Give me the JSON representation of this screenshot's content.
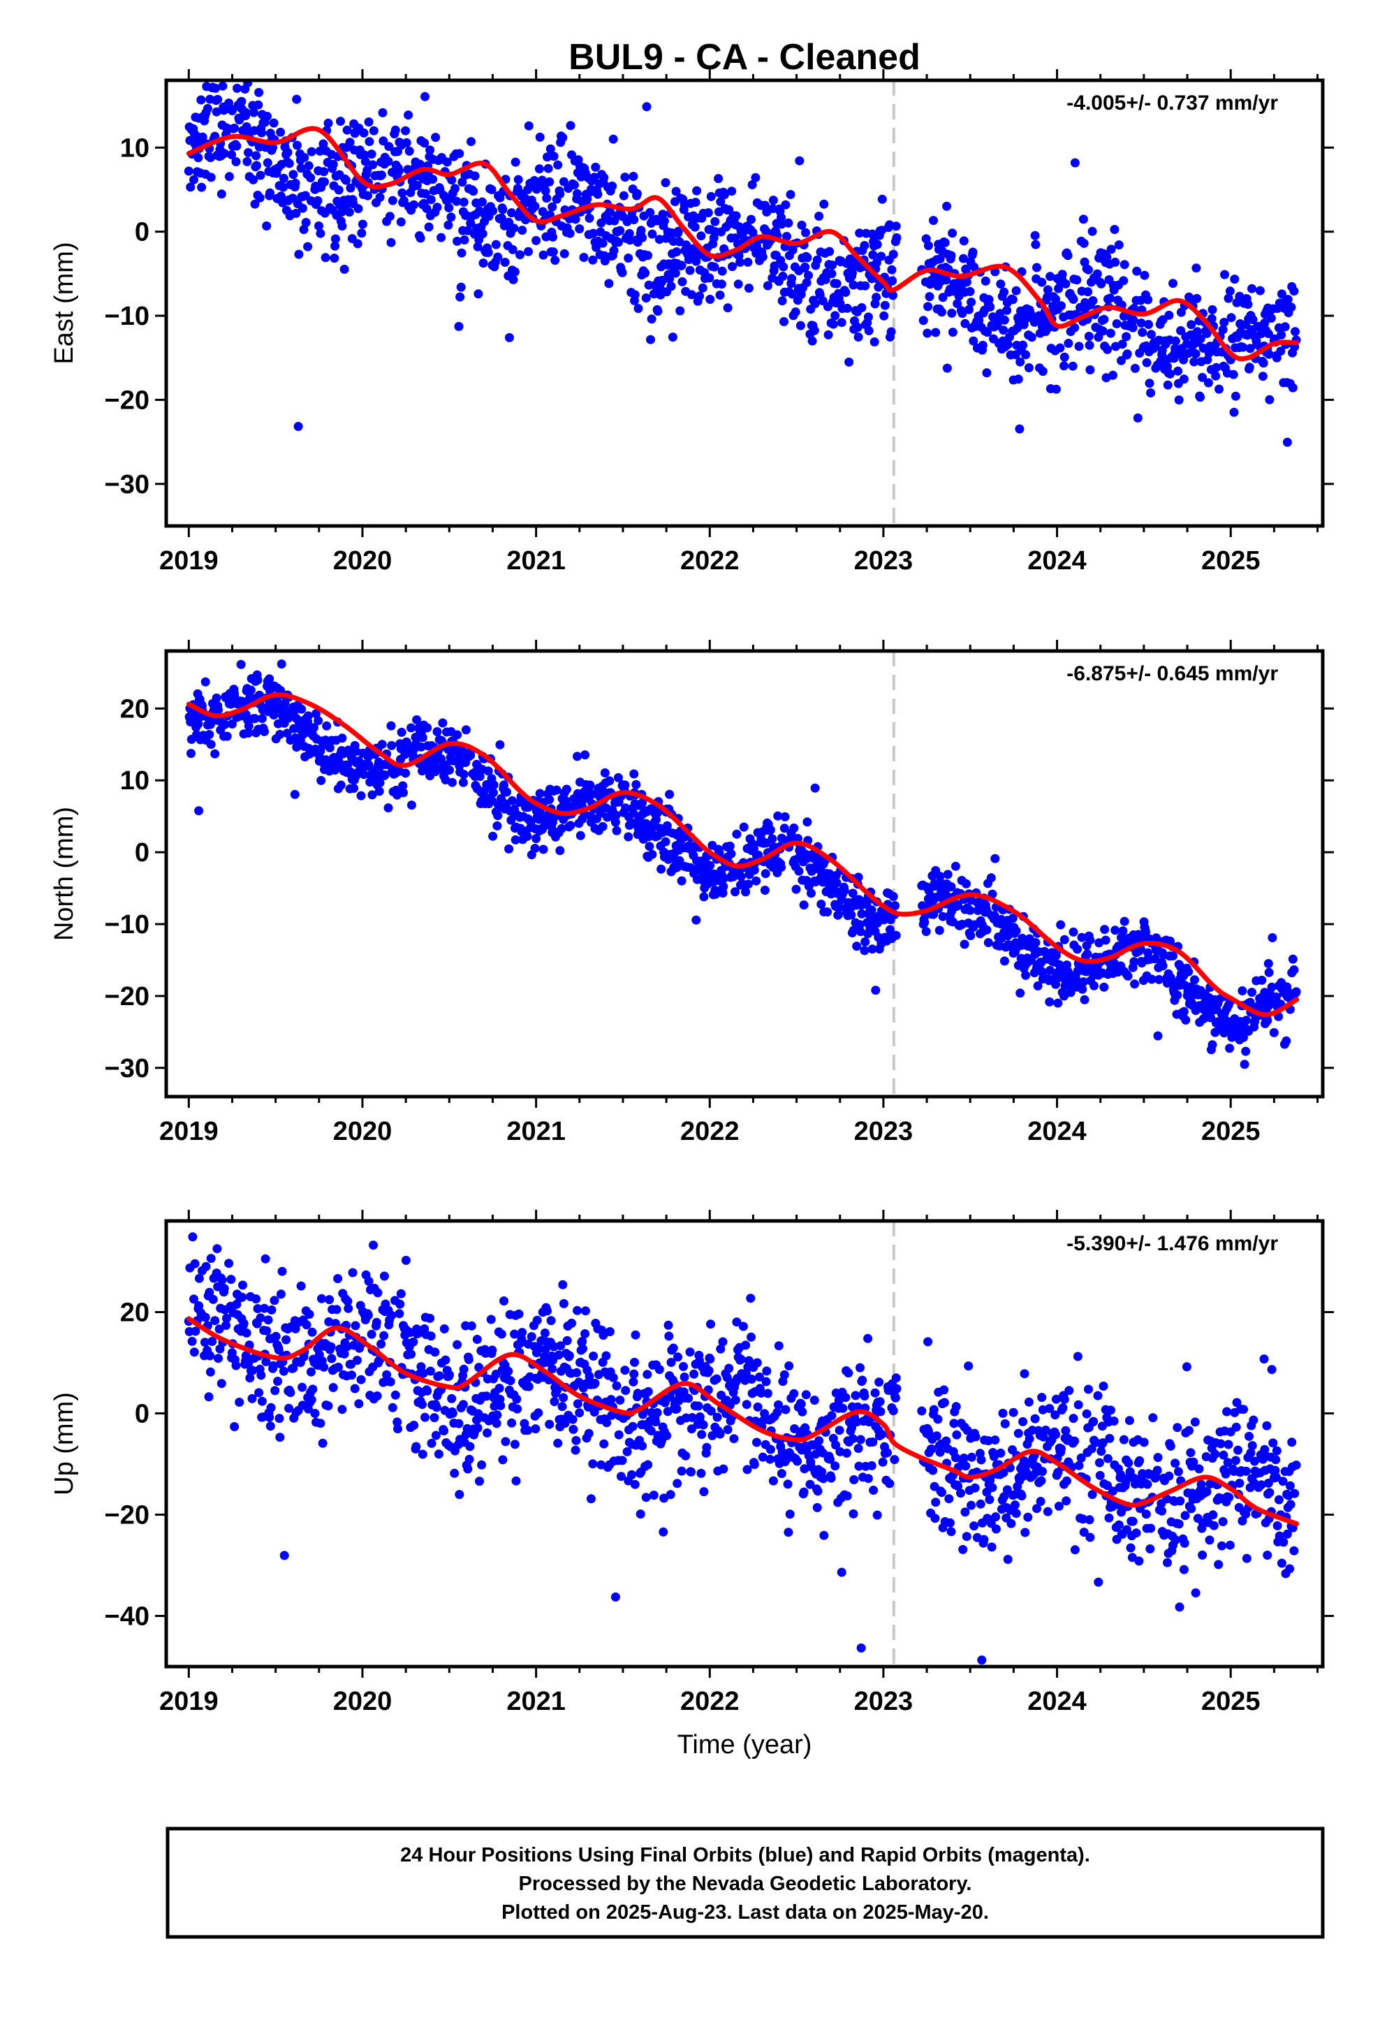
{
  "title": "BUL9  - CA - Cleaned",
  "xlabel": "Time (year)",
  "footer": [
    "24 Hour Positions Using Final Orbits (blue) and Rapid Orbits (magenta).",
    "Processed by the Nevada Geodetic Laboratory.",
    "Plotted on 2025-Aug-23. Last data on 2025-May-20."
  ],
  "colors": {
    "points": "#0000ff",
    "model": "#ff0000",
    "break_line": "#c8c8c8",
    "frame": "#000000"
  },
  "chart_data": [
    {
      "type": "scatter",
      "ylabel": "East (mm)",
      "rate_label": "-4.005+/- 0.737 mm/yr",
      "xlim": [
        2018.87,
        2025.53
      ],
      "ylim": [
        -35,
        18
      ],
      "xticks": [
        2019,
        2020,
        2021,
        2022,
        2023,
        2024,
        2025
      ],
      "xticklabels": [
        "2019",
        "2020",
        "2021",
        "2022",
        "2023",
        "2024",
        "2025"
      ],
      "yticks": [
        10,
        0,
        -10,
        -20,
        -30
      ],
      "yticklabels": [
        "10",
        "0",
        "−10",
        "−20",
        "−30"
      ],
      "break_x": 2023.06,
      "series": [
        {
          "kind": "observations",
          "color": "#0000ff",
          "x_range": [
            2019.0,
            2025.38
          ],
          "trend": {
            "slope": -4.0,
            "ref_x": 2019.0,
            "ref_y": 10.5
          },
          "seasonal": {
            "amplitude": 2.2,
            "phase": 0.2
          },
          "scatter_sd": 3.6,
          "gaps": [
            [
              2023.08,
              2023.22
            ]
          ]
        },
        {
          "kind": "model",
          "color": "#ff0000",
          "x": [
            2019.0,
            2019.25,
            2019.5,
            2019.75,
            2020.0,
            2020.15,
            2020.35,
            2020.5,
            2020.7,
            2020.85,
            2021.0,
            2021.15,
            2021.35,
            2021.55,
            2021.7,
            2021.85,
            2022.0,
            2022.15,
            2022.3,
            2022.5,
            2022.7,
            2022.85,
            2023.0,
            2023.06,
            2023.25,
            2023.45,
            2023.7,
            2023.9,
            2024.0,
            2024.15,
            2024.3,
            2024.5,
            2024.7,
            2024.85,
            2025.0,
            2025.1,
            2025.25,
            2025.38
          ],
          "y": [
            9.3,
            11.3,
            10.6,
            12.1,
            6.0,
            5.6,
            7.4,
            6.8,
            8.1,
            4.5,
            1.3,
            1.9,
            3.2,
            2.7,
            4.0,
            0.4,
            -2.8,
            -2.2,
            -0.6,
            -1.4,
            0.0,
            -3.0,
            -6.0,
            -6.9,
            -4.6,
            -5.3,
            -4.2,
            -8.2,
            -11.2,
            -10.1,
            -9.0,
            -9.8,
            -8.2,
            -10.6,
            -14.5,
            -15.0,
            -13.3,
            -13.2
          ]
        }
      ]
    },
    {
      "type": "scatter",
      "ylabel": "North (mm)",
      "rate_label": "-6.875+/- 0.645 mm/yr",
      "xlim": [
        2018.87,
        2025.53
      ],
      "ylim": [
        -34,
        28
      ],
      "xticks": [
        2019,
        2020,
        2021,
        2022,
        2023,
        2024,
        2025
      ],
      "xticklabels": [
        "2019",
        "2020",
        "2021",
        "2022",
        "2023",
        "2024",
        "2025"
      ],
      "yticks": [
        20,
        10,
        0,
        -10,
        -20,
        -30
      ],
      "yticklabels": [
        "20",
        "10",
        "0",
        "−10",
        "−20",
        "−30"
      ],
      "break_x": 2023.06,
      "series": [
        {
          "kind": "observations",
          "color": "#0000ff",
          "x_range": [
            2019.0,
            2025.38
          ],
          "trend": {
            "slope": -6.9,
            "ref_x": 2019.0,
            "ref_y": 21.0
          },
          "seasonal": {
            "amplitude": 3.0,
            "phase": -1.3
          },
          "scatter_sd": 2.2,
          "gaps": [
            [
              2023.08,
              2023.22
            ]
          ]
        },
        {
          "kind": "model",
          "color": "#ff0000",
          "x": [
            2019.0,
            2019.15,
            2019.3,
            2019.5,
            2019.7,
            2019.9,
            2020.1,
            2020.25,
            2020.5,
            2020.7,
            2020.9,
            2021.0,
            2021.15,
            2021.3,
            2021.5,
            2021.7,
            2021.9,
            2022.0,
            2022.15,
            2022.3,
            2022.5,
            2022.7,
            2022.9,
            2023.0,
            2023.1,
            2023.25,
            2023.5,
            2023.75,
            2024.0,
            2024.15,
            2024.3,
            2024.5,
            2024.7,
            2024.9,
            2025.0,
            2025.2,
            2025.38
          ],
          "y": [
            20.6,
            19.0,
            19.8,
            21.9,
            20.6,
            17.6,
            13.8,
            12.1,
            15.1,
            13.5,
            8.7,
            6.8,
            5.4,
            6.1,
            8.3,
            6.6,
            2.2,
            0.0,
            -1.9,
            -1.0,
            1.3,
            -1.1,
            -5.5,
            -7.5,
            -8.6,
            -8.1,
            -5.9,
            -8.2,
            -13.2,
            -15.1,
            -14.7,
            -12.7,
            -13.8,
            -18.6,
            -20.3,
            -22.6,
            -20.5
          ]
        }
      ]
    },
    {
      "type": "scatter",
      "ylabel": "Up (mm)",
      "rate_label": "-5.390+/- 1.476 mm/yr",
      "xlim": [
        2018.87,
        2025.53
      ],
      "ylim": [
        -50,
        38
      ],
      "xticks": [
        2019,
        2020,
        2021,
        2022,
        2023,
        2024,
        2025
      ],
      "xticklabels": [
        "2019",
        "2020",
        "2021",
        "2022",
        "2023",
        "2024",
        "2025"
      ],
      "yticks": [
        20,
        0,
        -20,
        -40
      ],
      "yticklabels": [
        "20",
        "0",
        "−20",
        "−40"
      ],
      "break_x": 2023.06,
      "series": [
        {
          "kind": "observations",
          "color": "#0000ff",
          "x_range": [
            2019.0,
            2025.38
          ],
          "trend": {
            "slope": -5.4,
            "ref_x": 2019.0,
            "ref_y": 16.0
          },
          "seasonal": {
            "amplitude": 4.5,
            "phase": 1.0
          },
          "scatter_sd": 7.5,
          "gaps": [
            [
              2023.08,
              2023.22
            ]
          ]
        },
        {
          "kind": "model",
          "color": "#ff0000",
          "x": [
            2019.0,
            2019.2,
            2019.5,
            2019.65,
            2019.85,
            2020.05,
            2020.25,
            2020.5,
            2020.6,
            2020.85,
            2021.05,
            2021.25,
            2021.5,
            2021.6,
            2021.85,
            2022.05,
            2022.3,
            2022.5,
            2022.6,
            2022.85,
            2023.0,
            2023.06,
            2023.2,
            2023.4,
            2023.5,
            2023.65,
            2023.85,
            2024.0,
            2024.2,
            2024.4,
            2024.5,
            2024.65,
            2024.85,
            2025.0,
            2025.15,
            2025.38
          ],
          "y": [
            18.7,
            14.5,
            11.0,
            12.3,
            16.9,
            13.0,
            7.9,
            5.2,
            6.0,
            11.6,
            8.3,
            3.4,
            0.2,
            0.9,
            5.9,
            1.9,
            -3.4,
            -5.2,
            -4.2,
            0.3,
            -2.2,
            -5.8,
            -8.5,
            -11.2,
            -12.6,
            -11.1,
            -7.5,
            -9.8,
            -14.5,
            -17.9,
            -17.6,
            -15.4,
            -12.6,
            -14.9,
            -18.8,
            -21.8
          ]
        }
      ]
    }
  ]
}
